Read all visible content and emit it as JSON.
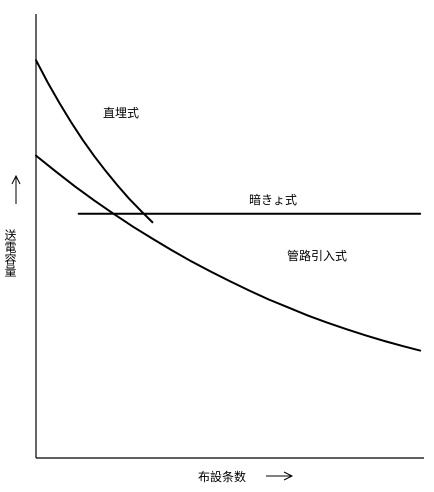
{
  "chart_data": {
    "type": "line",
    "title": "",
    "xlabel": "布設条数",
    "ylabel": "送電容量",
    "x_arrow": "→",
    "y_arrow": "→",
    "grid": false,
    "legend": "none",
    "axis_ticks": "none",
    "series": [
      {
        "name": "直埋式",
        "x": [
          0,
          0.03,
          0.06,
          0.09,
          0.12,
          0.15,
          0.18,
          0.21,
          0.24,
          0.27,
          0.3
        ],
        "y": [
          0.896,
          0.846,
          0.8,
          0.757,
          0.717,
          0.68,
          0.646,
          0.614,
          0.584,
          0.557,
          0.531
        ]
      },
      {
        "name": "暗きょ式",
        "x": [
          0.11,
          0.4,
          0.7,
          0.99
        ],
        "y": [
          0.55,
          0.55,
          0.55,
          0.55
        ]
      },
      {
        "name": "管路引入式",
        "x": [
          0,
          0.05,
          0.1,
          0.15,
          0.2,
          0.25,
          0.3,
          0.35,
          0.4,
          0.45,
          0.5,
          0.55,
          0.6,
          0.65,
          0.7,
          0.75,
          0.8,
          0.85,
          0.9,
          0.95,
          0.99
        ],
        "y": [
          0.681,
          0.646,
          0.612,
          0.58,
          0.55,
          0.521,
          0.494,
          0.468,
          0.443,
          0.42,
          0.398,
          0.377,
          0.357,
          0.339,
          0.321,
          0.305,
          0.29,
          0.276,
          0.263,
          0.251,
          0.242
        ]
      }
    ]
  }
}
